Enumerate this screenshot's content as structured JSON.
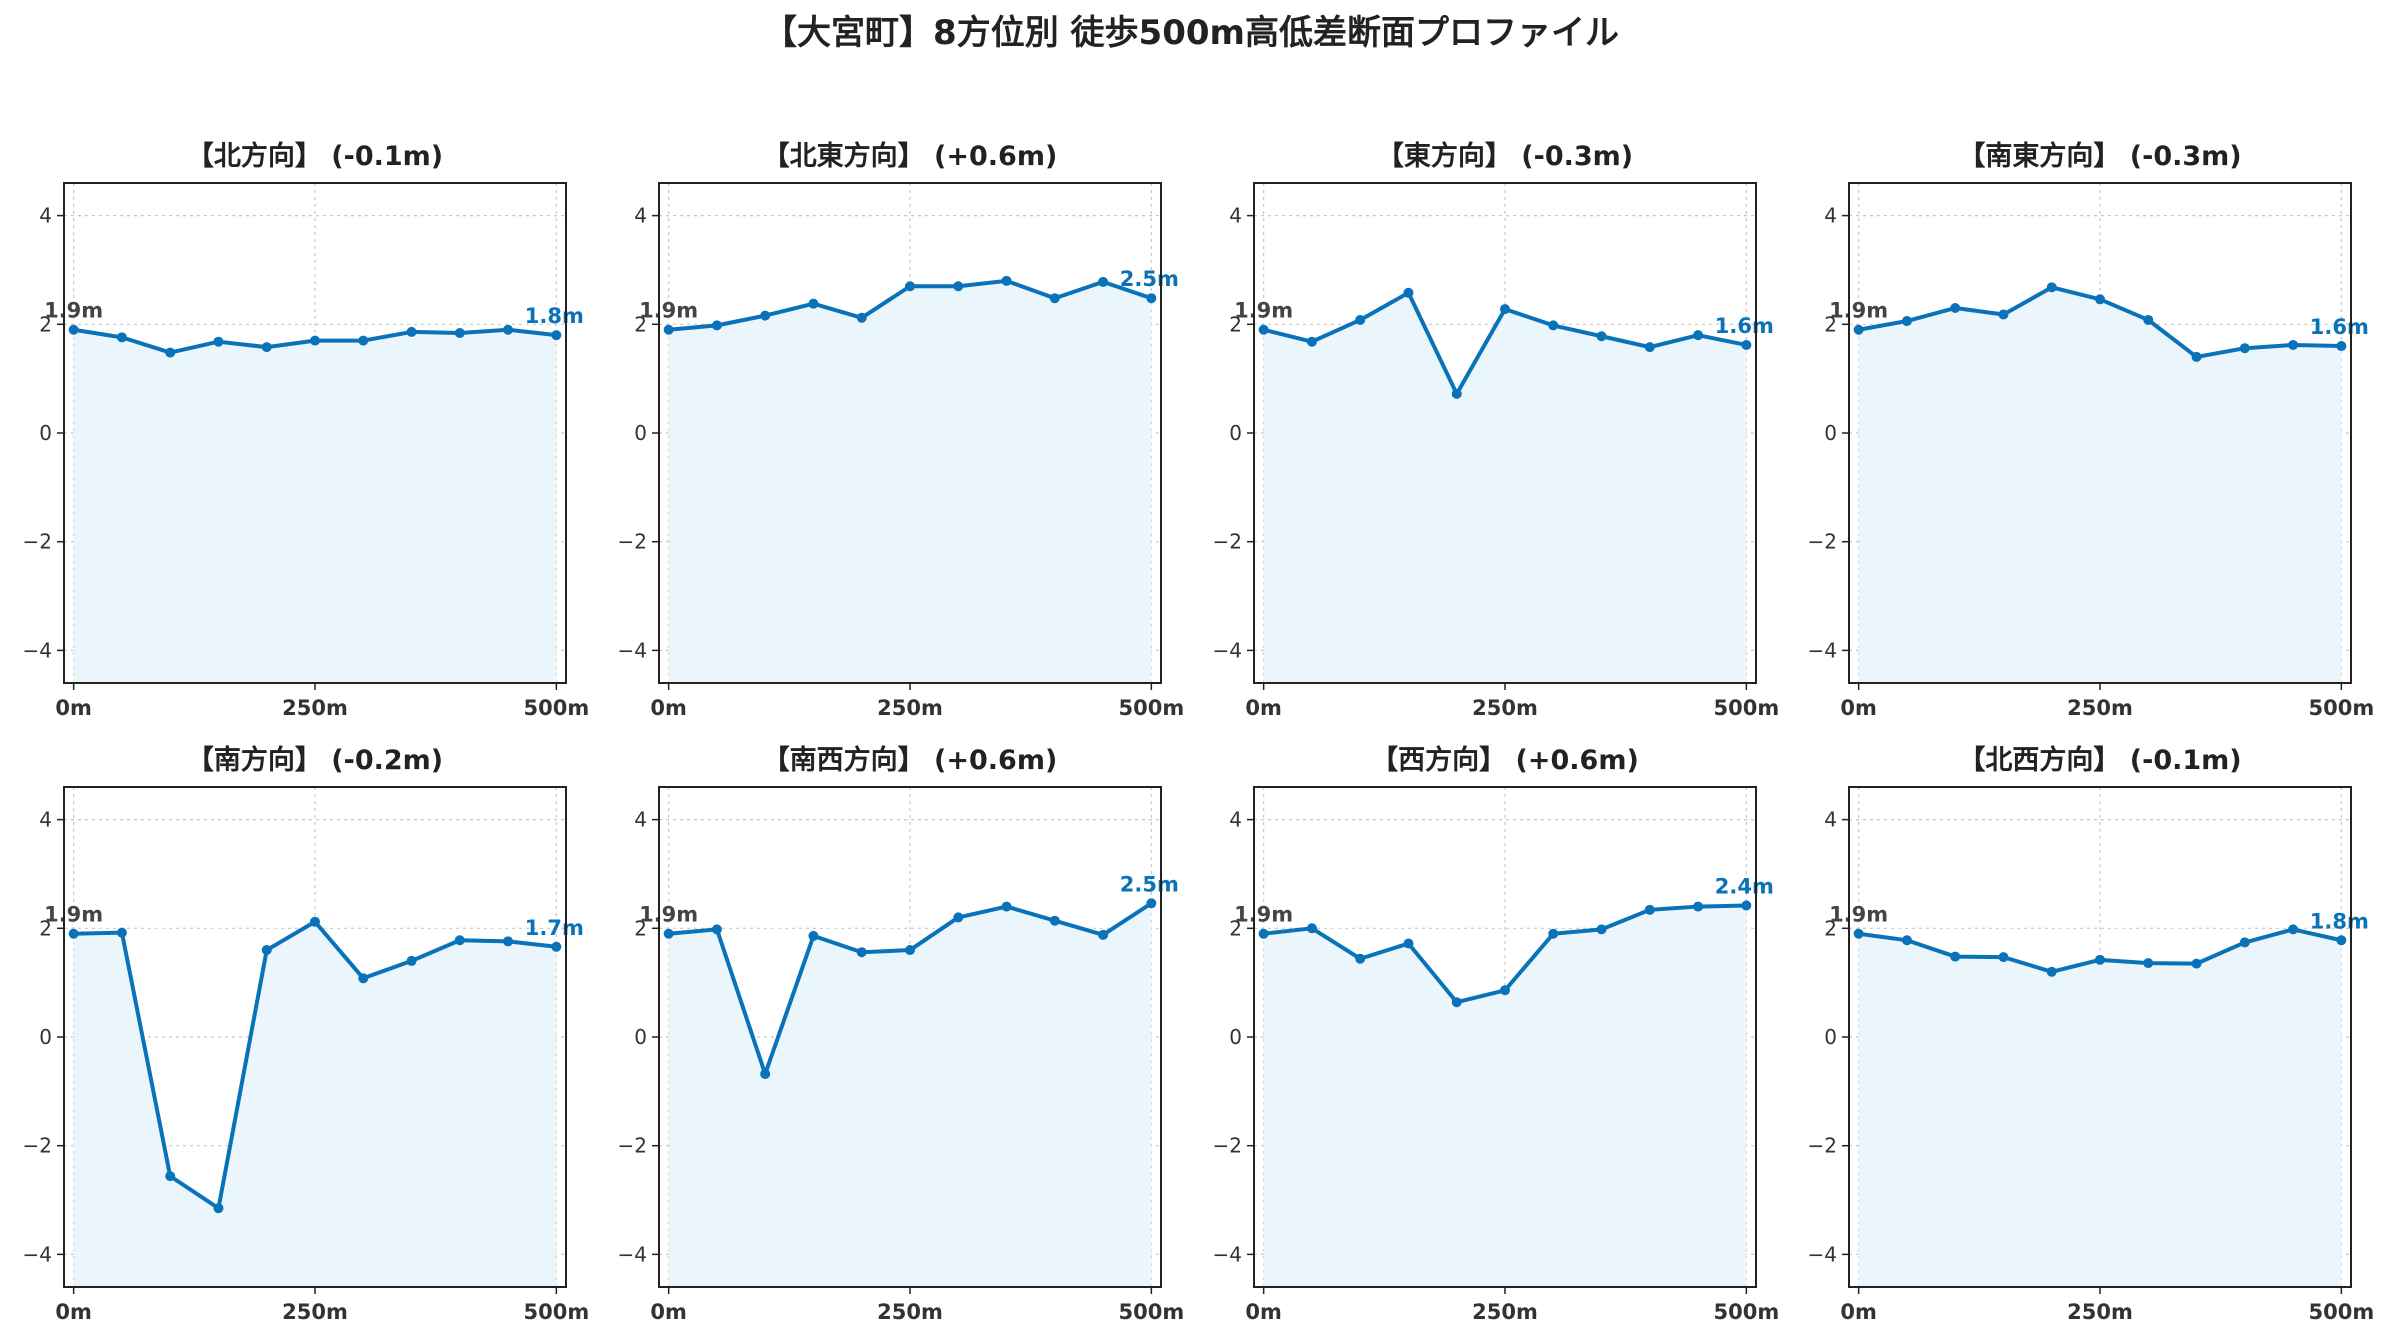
{
  "title": "【大宮町】8方位別 徒歩500m高低差断面プロファイル",
  "colors": {
    "line": "#0a72b9",
    "fill": "#eaf6fb",
    "end_label": "#0a72b9",
    "start_label": "#444444"
  },
  "chart_data": [
    {
      "type": "area",
      "title": "【北方向】 (-0.1m)",
      "x": [
        0,
        50,
        100,
        150,
        200,
        250,
        300,
        350,
        400,
        450,
        500
      ],
      "y": [
        1.9,
        1.76,
        1.48,
        1.68,
        1.58,
        1.7,
        1.7,
        1.86,
        1.84,
        1.9,
        1.8
      ],
      "xticks": [
        "0m",
        "250m",
        "500m"
      ],
      "yticks": [
        "−4",
        "−2",
        "0",
        "2",
        "4"
      ],
      "ylim": [
        -4.6,
        4.6
      ],
      "xlim": [
        -10,
        510
      ],
      "start_label": "1.9m",
      "end_label": "1.8m",
      "grid": true
    },
    {
      "type": "area",
      "title": "【北東方向】 (+0.6m)",
      "x": [
        0,
        50,
        100,
        150,
        200,
        250,
        300,
        350,
        400,
        450,
        500
      ],
      "y": [
        1.9,
        1.98,
        2.16,
        2.38,
        2.12,
        2.7,
        2.7,
        2.8,
        2.48,
        2.78,
        2.48
      ],
      "xticks": [
        "0m",
        "250m",
        "500m"
      ],
      "yticks": [
        "−4",
        "−2",
        "0",
        "2",
        "4"
      ],
      "ylim": [
        -4.6,
        4.6
      ],
      "xlim": [
        -10,
        510
      ],
      "start_label": "1.9m",
      "end_label": "2.5m",
      "grid": true
    },
    {
      "type": "area",
      "title": "【東方向】 (-0.3m)",
      "x": [
        0,
        50,
        100,
        150,
        200,
        250,
        300,
        350,
        400,
        450,
        500
      ],
      "y": [
        1.9,
        1.68,
        2.08,
        2.58,
        0.72,
        2.28,
        1.98,
        1.78,
        1.58,
        1.8,
        1.62
      ],
      "xticks": [
        "0m",
        "250m",
        "500m"
      ],
      "yticks": [
        "−4",
        "−2",
        "0",
        "2",
        "4"
      ],
      "ylim": [
        -4.6,
        4.6
      ],
      "xlim": [
        -10,
        510
      ],
      "start_label": "1.9m",
      "end_label": "1.6m",
      "grid": true
    },
    {
      "type": "area",
      "title": "【南東方向】 (-0.3m)",
      "x": [
        0,
        50,
        100,
        150,
        200,
        250,
        300,
        350,
        400,
        450,
        500
      ],
      "y": [
        1.9,
        2.06,
        2.3,
        2.18,
        2.68,
        2.46,
        2.08,
        1.4,
        1.56,
        1.62,
        1.6
      ],
      "xticks": [
        "0m",
        "250m",
        "500m"
      ],
      "yticks": [
        "−4",
        "−2",
        "0",
        "2",
        "4"
      ],
      "ylim": [
        -4.6,
        4.6
      ],
      "xlim": [
        -10,
        510
      ],
      "start_label": "1.9m",
      "end_label": "1.6m",
      "grid": true
    },
    {
      "type": "area",
      "title": "【南方向】 (-0.2m)",
      "x": [
        0,
        50,
        100,
        150,
        200,
        250,
        300,
        350,
        400,
        450,
        500
      ],
      "y": [
        1.9,
        1.92,
        -2.56,
        -3.15,
        1.6,
        2.12,
        1.08,
        1.4,
        1.78,
        1.76,
        1.66
      ],
      "xticks": [
        "0m",
        "250m",
        "500m"
      ],
      "yticks": [
        "−4",
        "−2",
        "0",
        "2",
        "4"
      ],
      "ylim": [
        -4.6,
        4.6
      ],
      "xlim": [
        -10,
        510
      ],
      "start_label": "1.9m",
      "end_label": "1.7m",
      "grid": true
    },
    {
      "type": "area",
      "title": "【南西方向】 (+0.6m)",
      "x": [
        0,
        50,
        100,
        150,
        200,
        250,
        300,
        350,
        400,
        450,
        500
      ],
      "y": [
        1.9,
        1.98,
        -0.68,
        1.86,
        1.56,
        1.6,
        2.2,
        2.4,
        2.14,
        1.88,
        2.46
      ],
      "xticks": [
        "0m",
        "250m",
        "500m"
      ],
      "yticks": [
        "−4",
        "−2",
        "0",
        "2",
        "4"
      ],
      "ylim": [
        -4.6,
        4.6
      ],
      "xlim": [
        -10,
        510
      ],
      "start_label": "1.9m",
      "end_label": "2.5m",
      "grid": true
    },
    {
      "type": "area",
      "title": "【西方向】 (+0.6m)",
      "x": [
        0,
        50,
        100,
        150,
        200,
        250,
        300,
        350,
        400,
        450,
        500
      ],
      "y": [
        1.9,
        2.0,
        1.44,
        1.72,
        0.64,
        0.86,
        1.9,
        1.98,
        2.34,
        2.4,
        2.42
      ],
      "xticks": [
        "0m",
        "250m",
        "500m"
      ],
      "yticks": [
        "−4",
        "−2",
        "0",
        "2",
        "4"
      ],
      "ylim": [
        -4.6,
        4.6
      ],
      "xlim": [
        -10,
        510
      ],
      "start_label": "1.9m",
      "end_label": "2.4m",
      "grid": true
    },
    {
      "type": "area",
      "title": "【北西方向】 (-0.1m)",
      "x": [
        0,
        50,
        100,
        150,
        200,
        250,
        300,
        350,
        400,
        450,
        500
      ],
      "y": [
        1.9,
        1.78,
        1.48,
        1.47,
        1.2,
        1.42,
        1.36,
        1.35,
        1.74,
        1.98,
        1.78
      ],
      "xticks": [
        "0m",
        "250m",
        "500m"
      ],
      "yticks": [
        "−4",
        "−2",
        "0",
        "2",
        "4"
      ],
      "ylim": [
        -4.6,
        4.6
      ],
      "xlim": [
        -10,
        510
      ],
      "start_label": "1.9m",
      "end_label": "1.8m",
      "grid": true
    }
  ]
}
